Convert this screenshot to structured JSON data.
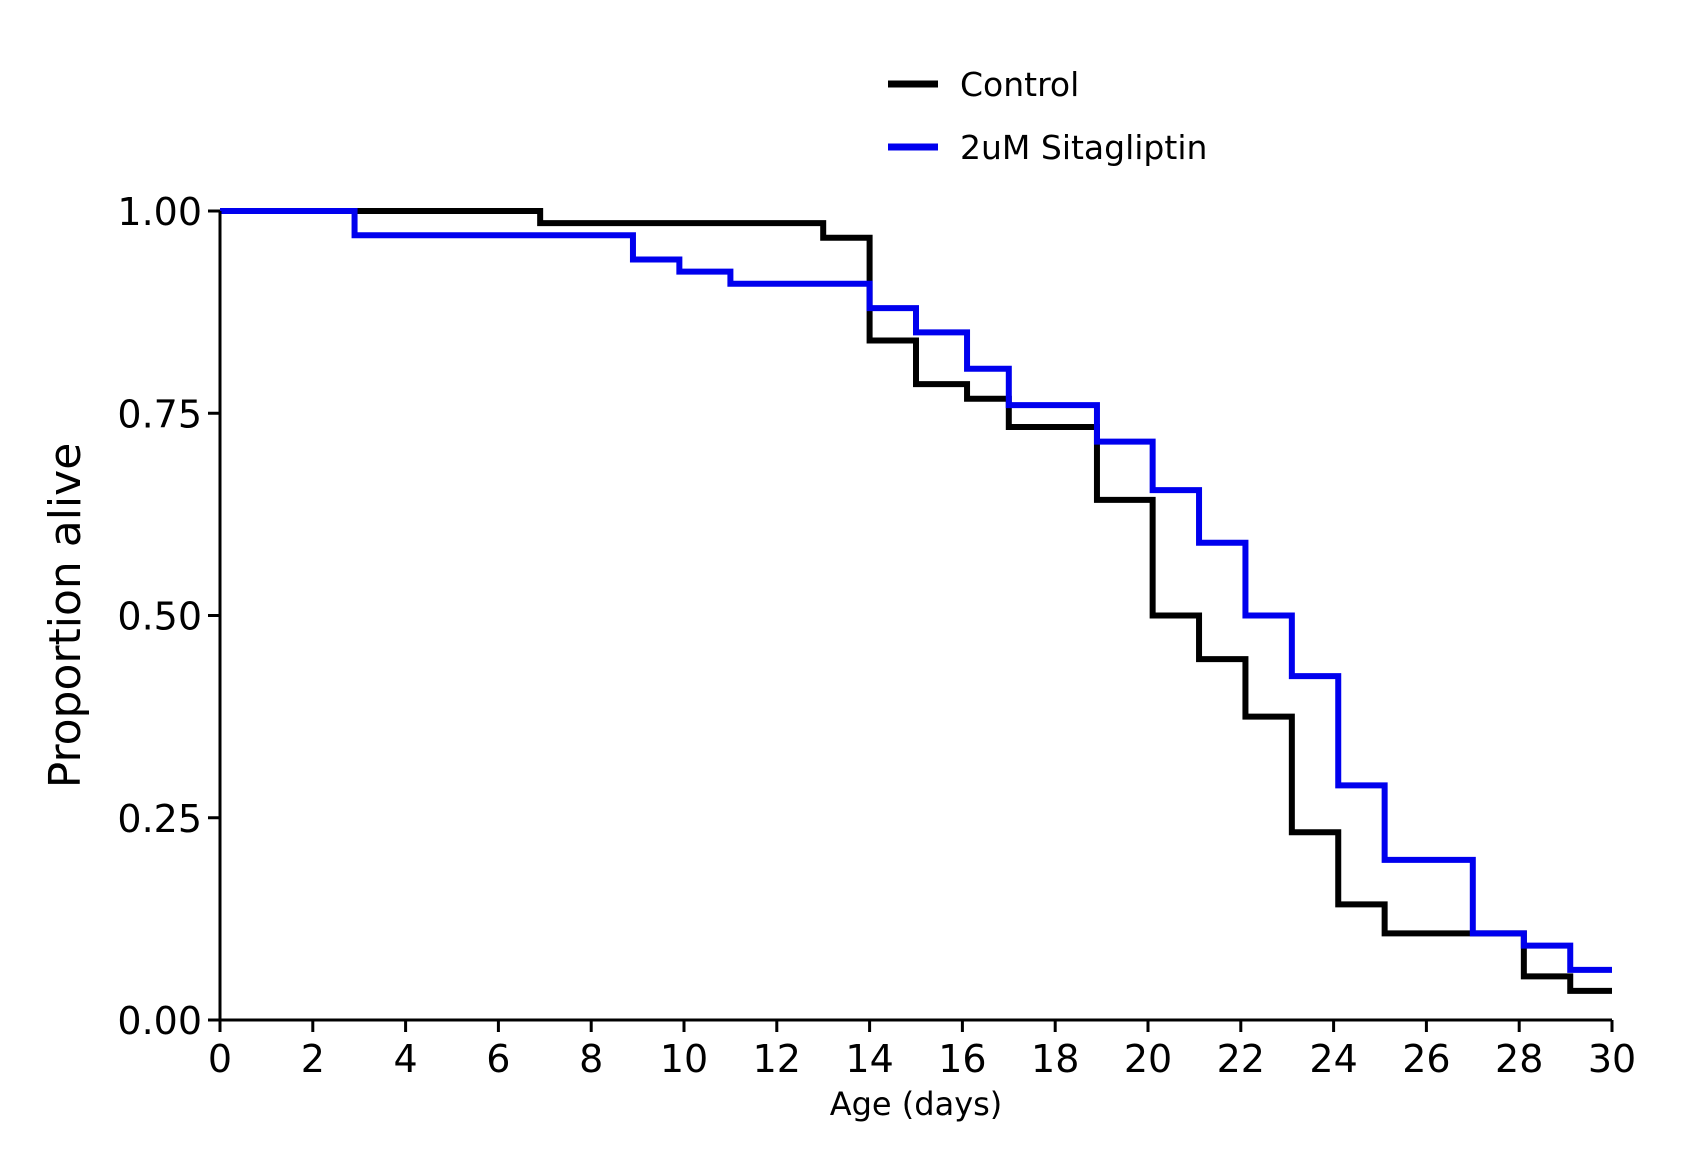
{
  "chart_data": {
    "type": "line",
    "step": true,
    "xlabel": "Age (days)",
    "ylabel": "Proportion alive",
    "xlim": [
      0,
      30
    ],
    "ylim": [
      0,
      1
    ],
    "x_ticks": [
      0,
      2,
      4,
      6,
      8,
      10,
      12,
      14,
      16,
      18,
      20,
      22,
      24,
      26,
      28,
      30
    ],
    "y_ticks": [
      0,
      0.25,
      0.5,
      0.75,
      1.0
    ],
    "x_tick_labels": [
      "0",
      "2",
      "4",
      "6",
      "8",
      "10",
      "12",
      "14",
      "16",
      "18",
      "20",
      "22",
      "24",
      "26",
      "28",
      "30"
    ],
    "y_tick_labels": [
      "0.00",
      "0.25",
      "0.50",
      "0.75",
      "1.00"
    ],
    "grid": false,
    "legend_position": "top-center",
    "series": [
      {
        "name": "Control",
        "color": "#000000",
        "x": [
          0,
          6.9,
          13.0,
          14.0,
          15.0,
          16.1,
          17.0,
          18.9,
          20.1,
          21.1,
          22.1,
          23.1,
          24.1,
          25.1,
          28.1,
          29.1,
          30
        ],
        "y": [
          1.0,
          0.985,
          0.967,
          0.84,
          0.786,
          0.768,
          0.733,
          0.643,
          0.5,
          0.446,
          0.375,
          0.232,
          0.143,
          0.107,
          0.054,
          0.036,
          0.036
        ]
      },
      {
        "name": "2uM Sitagliptin",
        "color": "#0000ee",
        "x": [
          0,
          2.9,
          8.9,
          9.9,
          11.0,
          14.0,
          15.0,
          16.1,
          17.0,
          18.9,
          20.1,
          21.1,
          22.1,
          23.1,
          24.1,
          25.1,
          27.0,
          28.1,
          29.1,
          30
        ],
        "y": [
          1.0,
          0.97,
          0.94,
          0.925,
          0.91,
          0.88,
          0.85,
          0.805,
          0.76,
          0.715,
          0.655,
          0.59,
          0.5,
          0.425,
          0.29,
          0.198,
          0.107,
          0.092,
          0.062,
          0.062
        ]
      }
    ]
  }
}
